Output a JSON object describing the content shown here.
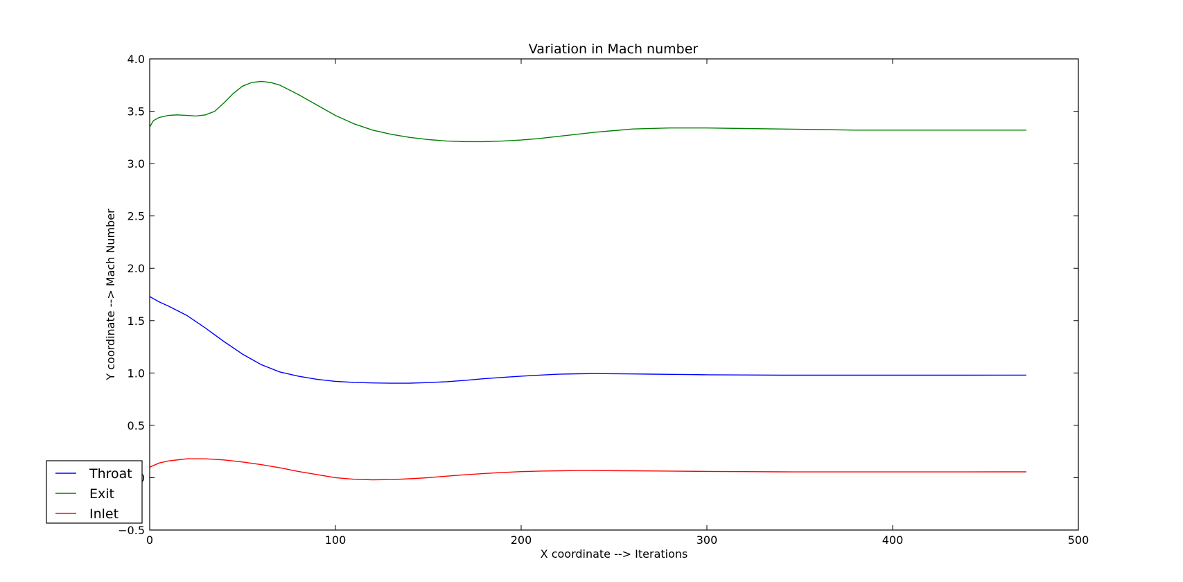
{
  "chart_data": {
    "type": "line",
    "title": "Variation in Mach number",
    "xlabel": "X coordinate -->  Iterations",
    "ylabel": "Y coordinate -->  Mach Number",
    "xlim": [
      0,
      500
    ],
    "ylim": [
      -0.5,
      4.0
    ],
    "xticks": [
      0,
      100,
      200,
      300,
      400,
      500
    ],
    "xtick_labels": [
      "0",
      "100",
      "200",
      "300",
      "400",
      "500"
    ],
    "yticks": [
      -0.5,
      0.0,
      0.5,
      1.0,
      1.5,
      2.0,
      2.5,
      3.0,
      3.5,
      4.0
    ],
    "ytick_labels": [
      "−0.5",
      "0.0",
      "0.5",
      "1.0",
      "1.5",
      "2.0",
      "2.5",
      "3.0",
      "3.5",
      "4.0"
    ],
    "grid": false,
    "legend_position": "lower-left",
    "series": [
      {
        "name": "Throat",
        "color": "#0000ff",
        "x": [
          0,
          5,
          10,
          20,
          30,
          40,
          50,
          60,
          70,
          80,
          90,
          100,
          110,
          120,
          130,
          140,
          150,
          160,
          170,
          180,
          190,
          200,
          210,
          220,
          230,
          240,
          250,
          260,
          270,
          280,
          290,
          300,
          320,
          340,
          360,
          380,
          400,
          420,
          440,
          460,
          472
        ],
        "y": [
          1.73,
          1.68,
          1.64,
          1.55,
          1.43,
          1.3,
          1.18,
          1.08,
          1.01,
          0.97,
          0.94,
          0.92,
          0.91,
          0.905,
          0.902,
          0.903,
          0.908,
          0.917,
          0.93,
          0.945,
          0.958,
          0.97,
          0.98,
          0.988,
          0.992,
          0.994,
          0.993,
          0.991,
          0.989,
          0.987,
          0.985,
          0.983,
          0.981,
          0.979,
          0.979,
          0.979,
          0.979,
          0.979,
          0.979,
          0.98,
          0.98
        ]
      },
      {
        "name": "Exit",
        "color": "#008000",
        "x": [
          0,
          2,
          5,
          10,
          15,
          20,
          25,
          30,
          35,
          40,
          45,
          50,
          55,
          60,
          65,
          70,
          80,
          90,
          100,
          110,
          120,
          130,
          140,
          150,
          160,
          170,
          180,
          190,
          200,
          210,
          220,
          230,
          240,
          250,
          260,
          280,
          300,
          320,
          340,
          360,
          380,
          400,
          420,
          440,
          460,
          472
        ],
        "y": [
          3.35,
          3.41,
          3.44,
          3.46,
          3.465,
          3.46,
          3.455,
          3.465,
          3.5,
          3.58,
          3.67,
          3.74,
          3.775,
          3.785,
          3.775,
          3.75,
          3.66,
          3.56,
          3.46,
          3.38,
          3.32,
          3.28,
          3.25,
          3.23,
          3.215,
          3.21,
          3.21,
          3.215,
          3.225,
          3.24,
          3.26,
          3.28,
          3.3,
          3.315,
          3.33,
          3.34,
          3.34,
          3.335,
          3.33,
          3.325,
          3.32,
          3.32,
          3.32,
          3.32,
          3.32,
          3.32
        ]
      },
      {
        "name": "Inlet",
        "color": "#ff0000",
        "x": [
          0,
          5,
          10,
          20,
          30,
          40,
          50,
          60,
          70,
          80,
          90,
          100,
          110,
          120,
          130,
          140,
          150,
          160,
          170,
          180,
          190,
          200,
          210,
          220,
          230,
          240,
          260,
          280,
          300,
          320,
          340,
          360,
          380,
          400,
          420,
          440,
          460,
          472
        ],
        "y": [
          0.1,
          0.14,
          0.16,
          0.18,
          0.18,
          0.17,
          0.15,
          0.125,
          0.095,
          0.06,
          0.03,
          0.0,
          -0.015,
          -0.02,
          -0.018,
          -0.01,
          0.0,
          0.015,
          0.028,
          0.04,
          0.05,
          0.058,
          0.063,
          0.066,
          0.068,
          0.068,
          0.066,
          0.063,
          0.06,
          0.058,
          0.056,
          0.055,
          0.055,
          0.055,
          0.055,
          0.055,
          0.056,
          0.056
        ]
      }
    ]
  }
}
